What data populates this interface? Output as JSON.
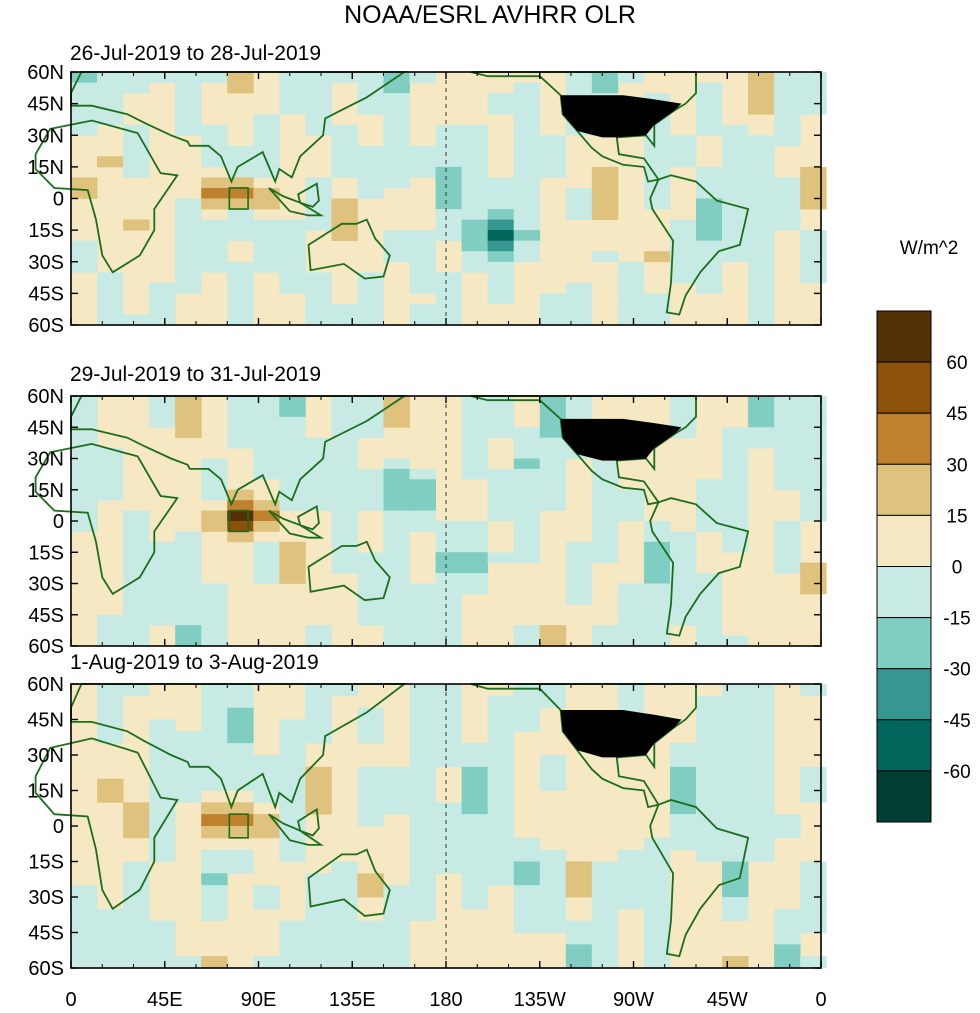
{
  "title": "NOAA/ESRL AVHRR OLR",
  "chart_data": {
    "type": "heatmap",
    "title": "NOAA/ESRL AVHRR OLR",
    "variable": "OLR anomaly",
    "units": "W/m^2",
    "panels": [
      {
        "label": "26-Jul-2019 to 28-Jul-2019"
      },
      {
        "label": "29-Jul-2019 to 31-Jul-2019"
      },
      {
        "label": "1-Aug-2019 to 3-Aug-2019"
      }
    ],
    "x_ticks": [
      "0",
      "45E",
      "90E",
      "135E",
      "180",
      "135W",
      "90W",
      "45W",
      "0"
    ],
    "x_values": [
      0,
      45,
      90,
      135,
      180,
      225,
      270,
      315,
      360
    ],
    "y_ticks": [
      "60N",
      "45N",
      "30N",
      "15N",
      "0",
      "15S",
      "30S",
      "45S",
      "60S"
    ],
    "y_values": [
      60,
      45,
      30,
      15,
      0,
      -15,
      -30,
      -45,
      -60
    ],
    "xlim": [
      0,
      360
    ],
    "ylim": [
      -60,
      60
    ],
    "colorbar": {
      "levels": [
        -60,
        -45,
        -30,
        -15,
        0,
        15,
        30,
        45,
        60
      ],
      "level_labels": [
        "60",
        "45",
        "30",
        "15",
        "0",
        "-15",
        "-30",
        "-45",
        "-60"
      ],
      "colors": [
        "#003d33",
        "#00665c",
        "#35978f",
        "#80cdc1",
        "#c7eae5",
        "#f6e8c3",
        "#dfc27d",
        "#bf812d",
        "#8c510a",
        "#543005"
      ]
    }
  }
}
